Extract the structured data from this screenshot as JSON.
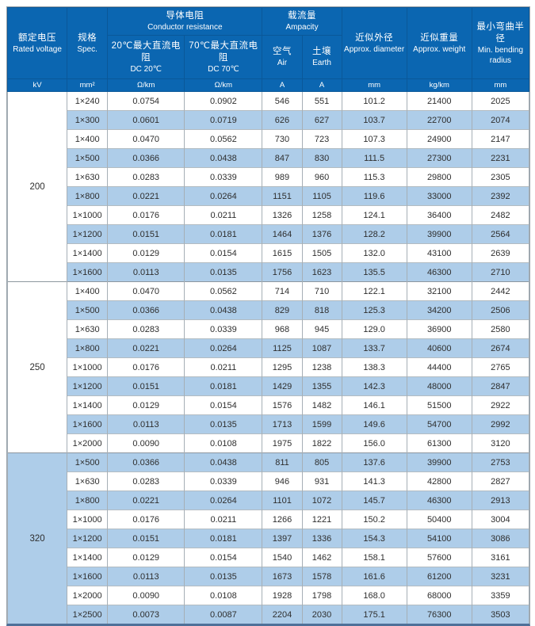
{
  "table": {
    "header": {
      "rated_voltage": {
        "zh": "额定电压",
        "en": "Rated voltage",
        "unit": "kV"
      },
      "spec": {
        "zh": "规格",
        "en": "Spec.",
        "unit": "mm²"
      },
      "conductor_resistance": {
        "zh": "导体电阻",
        "en": "Conductor resistance",
        "sub": [
          {
            "zh": "20℃最大直流电阻",
            "en": "DC 20℃",
            "unit": "Ω/km"
          },
          {
            "zh": "70℃最大直流电阻",
            "en": "DC 70℃",
            "unit": "Ω/km"
          }
        ]
      },
      "ampacity": {
        "zh": "载流量",
        "en": "Ampacity",
        "sub": [
          {
            "zh": "空气",
            "en": "Air",
            "unit": "A"
          },
          {
            "zh": "土壤",
            "en": "Earth",
            "unit": "A"
          }
        ]
      },
      "diameter": {
        "zh": "近似外径",
        "en": "Approx. diameter",
        "unit": "mm"
      },
      "weight": {
        "zh": "近似重量",
        "en": "Approx. weight",
        "unit": "kg/km"
      },
      "bending": {
        "zh": "最小弯曲半径",
        "en": "Min. bending radius",
        "unit": "mm"
      }
    },
    "groups": [
      {
        "voltage": "200",
        "rows": [
          [
            "1×240",
            "0.0754",
            "0.0902",
            "546",
            "551",
            "101.2",
            "21400",
            "2025"
          ],
          [
            "1×300",
            "0.0601",
            "0.0719",
            "626",
            "627",
            "103.7",
            "22700",
            "2074"
          ],
          [
            "1×400",
            "0.0470",
            "0.0562",
            "730",
            "723",
            "107.3",
            "24900",
            "2147"
          ],
          [
            "1×500",
            "0.0366",
            "0.0438",
            "847",
            "830",
            "111.5",
            "27300",
            "2231"
          ],
          [
            "1×630",
            "0.0283",
            "0.0339",
            "989",
            "960",
            "115.3",
            "29800",
            "2305"
          ],
          [
            "1×800",
            "0.0221",
            "0.0264",
            "1151",
            "1105",
            "119.6",
            "33000",
            "2392"
          ],
          [
            "1×1000",
            "0.0176",
            "0.0211",
            "1326",
            "1258",
            "124.1",
            "36400",
            "2482"
          ],
          [
            "1×1200",
            "0.0151",
            "0.0181",
            "1464",
            "1376",
            "128.2",
            "39900",
            "2564"
          ],
          [
            "1×1400",
            "0.0129",
            "0.0154",
            "1615",
            "1505",
            "132.0",
            "43100",
            "2639"
          ],
          [
            "1×1600",
            "0.0113",
            "0.0135",
            "1756",
            "1623",
            "135.5",
            "46300",
            "2710"
          ]
        ]
      },
      {
        "voltage": "250",
        "rows": [
          [
            "1×400",
            "0.0470",
            "0.0562",
            "714",
            "710",
            "122.1",
            "32100",
            "2442"
          ],
          [
            "1×500",
            "0.0366",
            "0.0438",
            "829",
            "818",
            "125.3",
            "34200",
            "2506"
          ],
          [
            "1×630",
            "0.0283",
            "0.0339",
            "968",
            "945",
            "129.0",
            "36900",
            "2580"
          ],
          [
            "1×800",
            "0.0221",
            "0.0264",
            "1125",
            "1087",
            "133.7",
            "40600",
            "2674"
          ],
          [
            "1×1000",
            "0.0176",
            "0.0211",
            "1295",
            "1238",
            "138.3",
            "44400",
            "2765"
          ],
          [
            "1×1200",
            "0.0151",
            "0.0181",
            "1429",
            "1355",
            "142.3",
            "48000",
            "2847"
          ],
          [
            "1×1400",
            "0.0129",
            "0.0154",
            "1576",
            "1482",
            "146.1",
            "51500",
            "2922"
          ],
          [
            "1×1600",
            "0.0113",
            "0.0135",
            "1713",
            "1599",
            "149.6",
            "54700",
            "2992"
          ],
          [
            "1×2000",
            "0.0090",
            "0.0108",
            "1975",
            "1822",
            "156.0",
            "61300",
            "3120"
          ]
        ]
      },
      {
        "voltage": "320",
        "rows": [
          [
            "1×500",
            "0.0366",
            "0.0438",
            "811",
            "805",
            "137.6",
            "39900",
            "2753"
          ],
          [
            "1×630",
            "0.0283",
            "0.0339",
            "946",
            "931",
            "141.3",
            "42800",
            "2827"
          ],
          [
            "1×800",
            "0.0221",
            "0.0264",
            "1101",
            "1072",
            "145.7",
            "46300",
            "2913"
          ],
          [
            "1×1000",
            "0.0176",
            "0.0211",
            "1266",
            "1221",
            "150.2",
            "50400",
            "3004"
          ],
          [
            "1×1200",
            "0.0151",
            "0.0181",
            "1397",
            "1336",
            "154.3",
            "54100",
            "3086"
          ],
          [
            "1×1400",
            "0.0129",
            "0.0154",
            "1540",
            "1462",
            "158.1",
            "57600",
            "3161"
          ],
          [
            "1×1600",
            "0.0113",
            "0.0135",
            "1673",
            "1578",
            "161.6",
            "61200",
            "3231"
          ],
          [
            "1×2000",
            "0.0090",
            "0.0108",
            "1928",
            "1798",
            "168.0",
            "68000",
            "3359"
          ],
          [
            "1×2500",
            "0.0073",
            "0.0087",
            "2204",
            "2030",
            "175.1",
            "76300",
            "3503"
          ]
        ]
      }
    ]
  },
  "colors": {
    "header_blue": "#0b66b1",
    "alt_row_blue": "#aecde9",
    "bottom_bar": "#4e7099"
  }
}
